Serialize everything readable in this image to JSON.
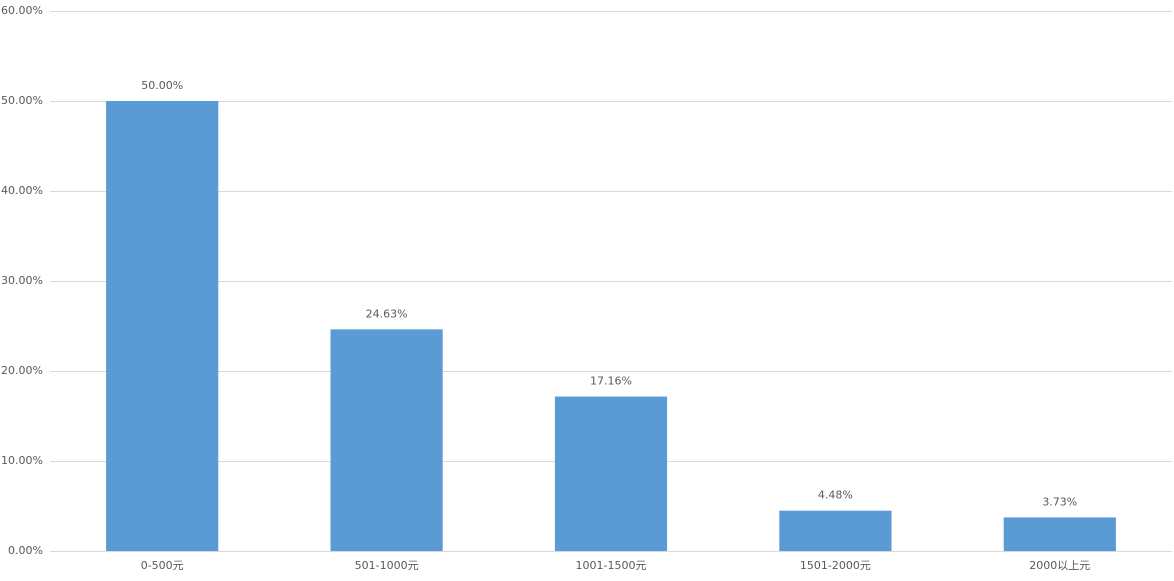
{
  "chart_data": {
    "type": "bar",
    "categories": [
      "0-500元",
      "501-1000元",
      "1001-1500元",
      "1501-2000元",
      "2000以上元"
    ],
    "values": [
      50,
      24.63,
      17.16,
      4.48,
      3.73
    ],
    "value_labels": [
      "50.00%",
      "24.63%",
      "17.16%",
      "4.48%",
      "3.73%"
    ],
    "color": "#5b9bd5",
    "ylim": [
      0,
      60
    ],
    "yticks": [
      {
        "value": 0,
        "label": "0.00%"
      },
      {
        "value": 10,
        "label": "10.00%"
      },
      {
        "value": 20,
        "label": "20.00%"
      },
      {
        "value": 30,
        "label": "30.00%"
      },
      {
        "value": 40,
        "label": "40.00%"
      },
      {
        "value": 50,
        "label": "50.00%"
      },
      {
        "value": 60,
        "label": "60.00%"
      }
    ],
    "grid": true
  }
}
